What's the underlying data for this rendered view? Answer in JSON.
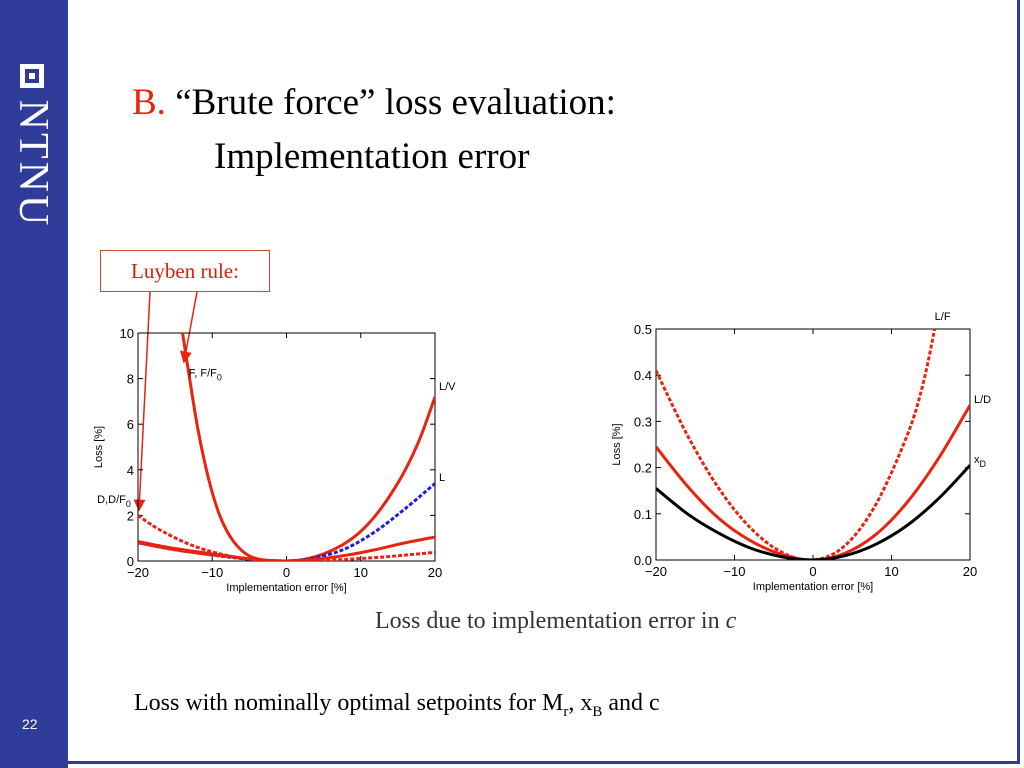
{
  "slide": {
    "number": "22",
    "brand": "NTNU",
    "title_prefix": "B.",
    "title_line1": "“Brute force” loss evaluation:",
    "title_line2": "Implementation error",
    "callout": "Luyben rule:",
    "caption": "Loss due to implementation error in ",
    "caption_var": "c",
    "footer_text": "Loss with nominally optimal setpoints for M",
    "footer_sub_r": "r",
    "footer_mid": ", x",
    "footer_sub_b": "B",
    "footer_end": " and c"
  },
  "colors": {
    "sidebar": "#2f3c99",
    "red": "#e8230f",
    "blue": "#1f1fd8",
    "black": "#000000"
  },
  "chart_data": [
    {
      "type": "line",
      "xlabel": "Implementation error [%]",
      "ylabel": "Loss [%]",
      "xlim": [
        -20,
        20
      ],
      "ylim": [
        0,
        10
      ],
      "xticks": [
        -20,
        -10,
        0,
        10,
        20
      ],
      "yticks": [
        0,
        2,
        4,
        6,
        8,
        10
      ],
      "series": [
        {
          "name": "F, F/F0",
          "color": "#e8230f",
          "style": "solid",
          "x": [
            -14,
            -13,
            -12,
            -11,
            -10,
            -9,
            -8,
            -7,
            -6,
            -5,
            -4,
            -3,
            -2,
            -1,
            0,
            1,
            2,
            3
          ],
          "y": [
            10,
            7.9,
            5.9,
            4.3,
            3.0,
            2.0,
            1.3,
            0.8,
            0.45,
            0.22,
            0.1,
            0.04,
            0.01,
            0,
            0,
            0.01,
            0.02,
            0.04
          ]
        },
        {
          "name": "D,D/F0",
          "color": "#e8230f",
          "style": "dashed",
          "x": [
            -20,
            -18,
            -16,
            -14,
            -12,
            -10,
            -8,
            -6,
            -4,
            -2,
            0,
            2,
            4,
            6,
            8,
            10,
            12,
            14,
            16,
            18,
            20
          ],
          "y": [
            2.0,
            1.55,
            1.18,
            0.86,
            0.6,
            0.4,
            0.24,
            0.13,
            0.05,
            0.01,
            0,
            0.01,
            0.02,
            0.04,
            0.07,
            0.11,
            0.15,
            0.2,
            0.26,
            0.32,
            0.38
          ]
        },
        {
          "name": "L/V",
          "color": "#e8230f",
          "style": "solid",
          "x": [
            -20,
            -16,
            -12,
            -8,
            -4,
            0,
            2,
            4,
            6,
            8,
            10,
            12,
            14,
            16,
            18,
            20
          ],
          "y": [
            0.85,
            0.6,
            0.4,
            0.22,
            0.06,
            0,
            0.05,
            0.2,
            0.45,
            0.8,
            1.3,
            2.0,
            2.9,
            4.0,
            5.4,
            7.2
          ]
        },
        {
          "name": "L",
          "color": "#1f1fd8",
          "style": "dashed",
          "x": [
            -20,
            -16,
            -12,
            -8,
            -4,
            0,
            4,
            8,
            12,
            16,
            20
          ],
          "y": [
            0.8,
            0.55,
            0.35,
            0.18,
            0.05,
            0,
            0.15,
            0.55,
            1.3,
            2.3,
            3.4
          ]
        },
        {
          "name": "",
          "color": "#e8230f",
          "style": "solid",
          "x": [
            -20,
            -16,
            -12,
            -8,
            -4,
            0,
            4,
            8,
            12,
            16,
            20
          ],
          "y": [
            0.8,
            0.55,
            0.35,
            0.2,
            0.06,
            0,
            0.08,
            0.25,
            0.5,
            0.8,
            1.05
          ]
        }
      ]
    },
    {
      "type": "line",
      "xlabel": "Implementation error [%]",
      "ylabel": "Loss [%]",
      "xlim": [
        -20,
        20
      ],
      "ylim": [
        0,
        0.5
      ],
      "xticks": [
        -20,
        -10,
        0,
        10,
        20
      ],
      "yticks": [
        0,
        0.1,
        0.2,
        0.3,
        0.4,
        0.5
      ],
      "series": [
        {
          "name": "L/F",
          "color": "#e8230f",
          "style": "dashed",
          "x": [
            -20,
            -16,
            -12,
            -8,
            -4,
            0,
            4,
            8,
            12,
            14,
            15.5
          ],
          "y": [
            0.41,
            0.27,
            0.155,
            0.07,
            0.017,
            0,
            0.03,
            0.12,
            0.27,
            0.38,
            0.5
          ]
        },
        {
          "name": "L/D",
          "color": "#e8230f",
          "style": "solid",
          "x": [
            -20,
            -16,
            -12,
            -8,
            -4,
            0,
            4,
            8,
            12,
            16,
            20
          ],
          "y": [
            0.245,
            0.16,
            0.09,
            0.042,
            0.012,
            0,
            0.014,
            0.055,
            0.125,
            0.22,
            0.335
          ]
        },
        {
          "name": "x_D",
          "color": "#000000",
          "style": "solid",
          "x": [
            -20,
            -16,
            -12,
            -8,
            -4,
            0,
            4,
            8,
            12,
            16,
            20
          ],
          "y": [
            0.155,
            0.1,
            0.058,
            0.026,
            0.007,
            0,
            0.009,
            0.034,
            0.075,
            0.133,
            0.205
          ]
        }
      ]
    }
  ]
}
